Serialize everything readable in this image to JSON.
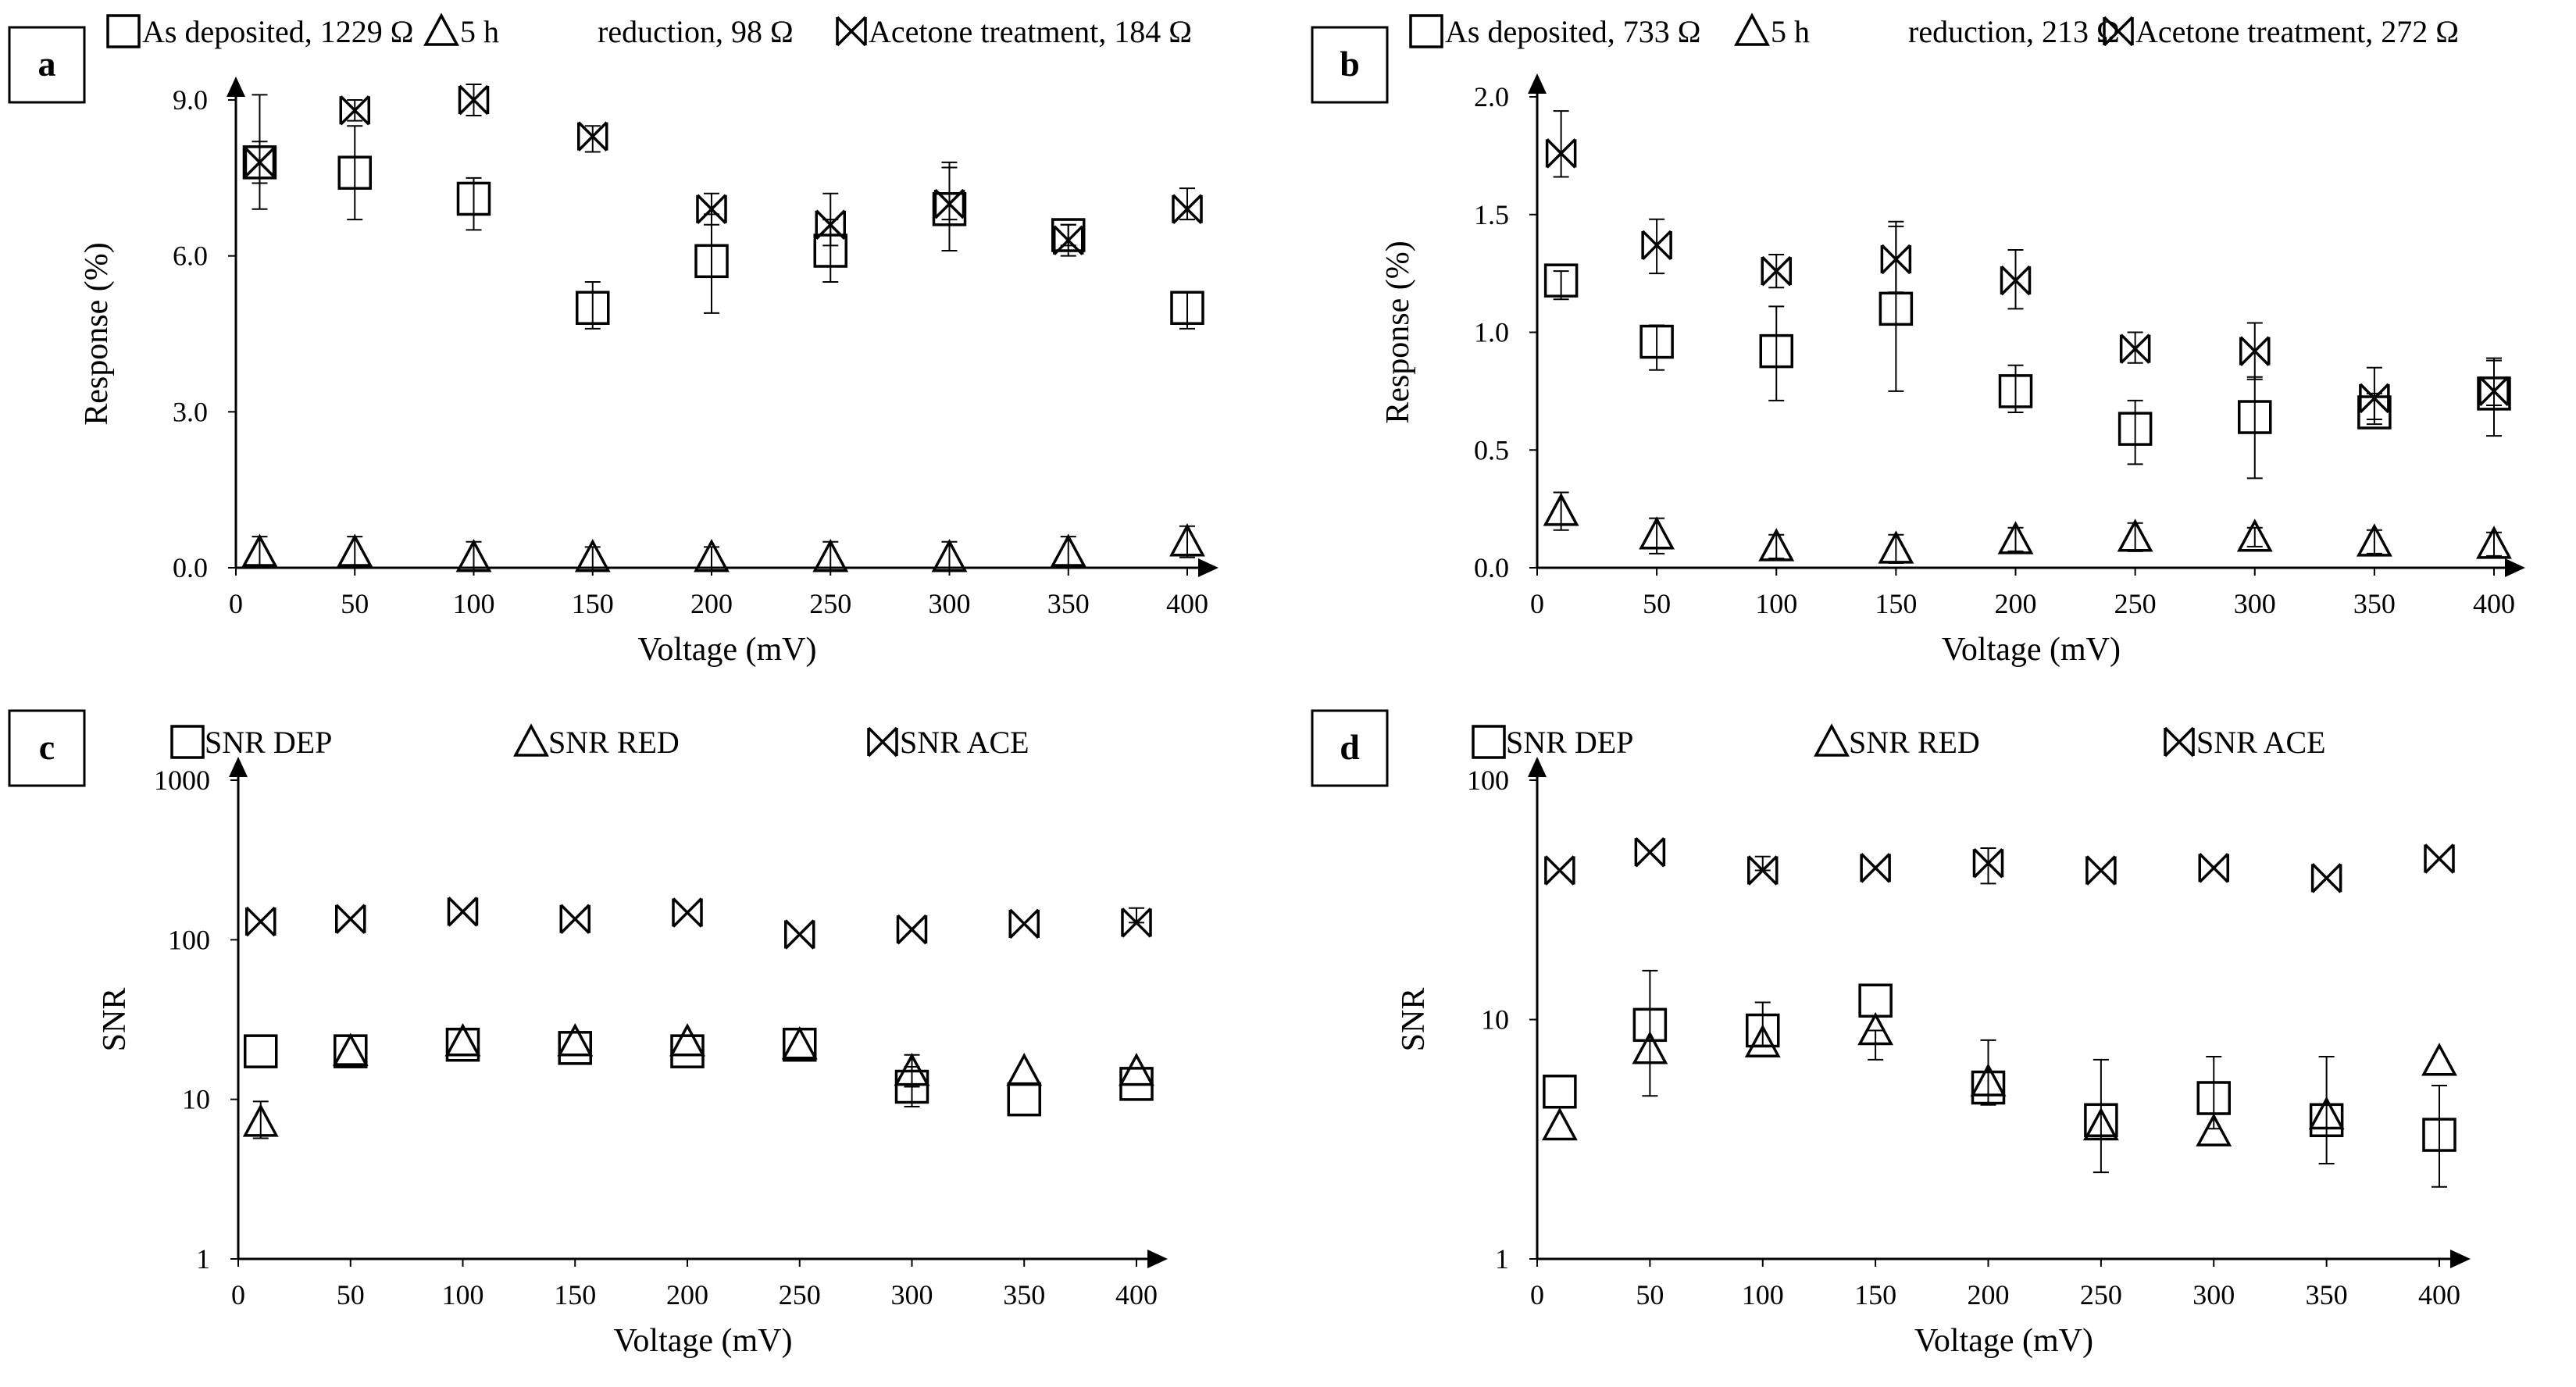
{
  "chart_data": [
    {
      "panel": "a",
      "type": "scatter",
      "title": "",
      "xlabel": "Voltage (mV)",
      "ylabel": "Response (%)",
      "scale": "linear",
      "xlim": [
        0,
        400
      ],
      "ylim": [
        0,
        9
      ],
      "xticks": [
        "0",
        "50",
        "100",
        "150",
        "200",
        "250",
        "300",
        "350",
        "400"
      ],
      "yticks": [
        "0.0",
        "3.0",
        "6.0",
        "9.0"
      ],
      "x": [
        10,
        50,
        100,
        150,
        200,
        250,
        300,
        350,
        400
      ],
      "legend": [
        "As deposited, 1229 Ω",
        "5 h",
        "reduction, 98 Ω",
        "Acetone treatment, 184 Ω"
      ],
      "series": [
        {
          "name": "As deposited, 1229 Ω",
          "marker": "square",
          "values": [
            7.8,
            7.6,
            7.1,
            5.0,
            5.9,
            6.1,
            6.9,
            6.4,
            5.0
          ],
          "err_lo": [
            0.4,
            0.9,
            0.6,
            0.4,
            1.0,
            0.6,
            0.8,
            0.2,
            0.4
          ],
          "err_hi": [
            0.4,
            0.9,
            0.4,
            0.5,
            0.9,
            0.6,
            0.8,
            0.2,
            0.3
          ]
        },
        {
          "name": "5 h reduction, 98 Ω",
          "marker": "triangle",
          "values": [
            0.3,
            0.3,
            0.2,
            0.2,
            0.2,
            0.2,
            0.2,
            0.3,
            0.5
          ],
          "err_lo": [
            0.3,
            0.3,
            0.3,
            0.2,
            0.2,
            0.3,
            0.2,
            0.3,
            0.3
          ],
          "err_hi": [
            0.3,
            0.3,
            0.3,
            0.2,
            0.2,
            0.3,
            0.3,
            0.3,
            0.3
          ]
        },
        {
          "name": "Acetone treatment, 184 Ω",
          "marker": "bowtie",
          "values": [
            7.8,
            8.8,
            9.0,
            8.3,
            6.9,
            6.6,
            7.0,
            6.3,
            6.9
          ],
          "err_lo": [
            0.9,
            0.2,
            0.3,
            0.3,
            0.3,
            0.4,
            0.3,
            0.3,
            0.2
          ],
          "err_hi": [
            1.3,
            0.2,
            0.3,
            0.2,
            0.3,
            0.6,
            0.8,
            0.3,
            0.4
          ]
        }
      ]
    },
    {
      "panel": "b",
      "type": "scatter",
      "title": "",
      "xlabel": "Voltage (mV)",
      "ylabel": "Response (%)",
      "scale": "linear",
      "xlim": [
        0,
        400
      ],
      "ylim": [
        0,
        2
      ],
      "xticks": [
        "0",
        "50",
        "100",
        "150",
        "200",
        "250",
        "300",
        "350",
        "400"
      ],
      "yticks": [
        "0.0",
        "0.5",
        "1.0",
        "1.5",
        "2.0"
      ],
      "x": [
        10,
        50,
        100,
        150,
        200,
        250,
        300,
        350,
        400
      ],
      "legend": [
        "As deposited, 733 Ω",
        "5 h",
        "reduction, 213 Ω",
        "Acetone treatment, 272 Ω"
      ],
      "series": [
        {
          "name": "As deposited, 733 Ω",
          "marker": "square",
          "values": [
            1.22,
            0.96,
            0.92,
            1.1,
            0.75,
            0.59,
            0.64,
            0.66,
            0.74
          ],
          "err_lo": [
            0.08,
            0.12,
            0.21,
            0.35,
            0.09,
            0.15,
            0.26,
            0.05,
            0.18
          ],
          "err_hi": [
            0.04,
            0.07,
            0.19,
            0.35,
            0.11,
            0.12,
            0.17,
            0.08,
            0.14
          ]
        },
        {
          "name": "5 h reduction, 213 Ω",
          "marker": "triangle",
          "values": [
            0.24,
            0.14,
            0.09,
            0.08,
            0.12,
            0.13,
            0.13,
            0.11,
            0.1
          ],
          "err_lo": [
            0.08,
            0.08,
            0.05,
            0.06,
            0.05,
            0.06,
            0.04,
            0.05,
            0.05
          ],
          "err_hi": [
            0.08,
            0.07,
            0.05,
            0.06,
            0.05,
            0.06,
            0.04,
            0.05,
            0.05
          ]
        },
        {
          "name": "Acetone treatment, 272 Ω",
          "marker": "bowtie",
          "values": [
            1.76,
            1.37,
            1.26,
            1.31,
            1.22,
            0.93,
            0.92,
            0.72,
            0.75
          ],
          "err_lo": [
            0.1,
            0.12,
            0.07,
            0.14,
            0.12,
            0.06,
            0.12,
            0.09,
            0.06
          ],
          "err_hi": [
            0.18,
            0.11,
            0.07,
            0.16,
            0.13,
            0.07,
            0.12,
            0.13,
            0.14
          ]
        }
      ]
    },
    {
      "panel": "c",
      "type": "scatter",
      "title": "",
      "xlabel": "Voltage (mV)",
      "ylabel": "SNR",
      "scale": "log",
      "xlim": [
        0,
        400
      ],
      "ylim": [
        1,
        1000
      ],
      "xticks": [
        "0",
        "50",
        "100",
        "150",
        "200",
        "250",
        "300",
        "350",
        "400"
      ],
      "yticks": [
        "1",
        "10",
        "100",
        "1000"
      ],
      "x": [
        10,
        50,
        100,
        150,
        200,
        250,
        300,
        350,
        400
      ],
      "legend": [
        "SNR DEP",
        "SNR RED",
        "SNR ACE"
      ],
      "series": [
        {
          "name": "SNR DEP",
          "marker": "square",
          "values": [
            20,
            20,
            22,
            21,
            20,
            22,
            12,
            10,
            12.5
          ],
          "err_lo": [
            0,
            0,
            0,
            0,
            0,
            0,
            3,
            0,
            0
          ],
          "err_hi": [
            0,
            0,
            0,
            0,
            0,
            0,
            4,
            0,
            0
          ]
        },
        {
          "name": "SNR RED",
          "marker": "triangle",
          "values": [
            7.2,
            20,
            23,
            23,
            23,
            22,
            15,
            15,
            15
          ],
          "err_lo": [
            1.5,
            0,
            0,
            0,
            0,
            0,
            3,
            0,
            0
          ],
          "err_hi": [
            2.5,
            0,
            0,
            0,
            0,
            0,
            4,
            0,
            0
          ]
        },
        {
          "name": "SNR ACE",
          "marker": "bowtie",
          "values": [
            130,
            135,
            150,
            135,
            148,
            108,
            116,
            126,
            128
          ],
          "err_lo": [
            0,
            0,
            0,
            0,
            0,
            0,
            0,
            0,
            0
          ],
          "err_hi": [
            0,
            0,
            0,
            0,
            0,
            0,
            0,
            0,
            30
          ]
        }
      ]
    },
    {
      "panel": "d",
      "type": "scatter",
      "title": "",
      "xlabel": "Voltage (mV)",
      "ylabel": "SNR",
      "scale": "log",
      "xlim": [
        0,
        400
      ],
      "ylim": [
        1,
        100
      ],
      "xticks": [
        "0",
        "50",
        "100",
        "150",
        "200",
        "250",
        "300",
        "350",
        "400"
      ],
      "yticks": [
        "1",
        "10",
        "100"
      ],
      "x": [
        10,
        50,
        100,
        150,
        200,
        250,
        300,
        350,
        400
      ],
      "legend": [
        "SNR DEP",
        "SNR RED",
        "SNR ACE"
      ],
      "series": [
        {
          "name": "SNR DEP",
          "marker": "square",
          "values": [
            5.0,
            9.5,
            9.0,
            12,
            5.2,
            3.8,
            4.7,
            3.8,
            3.3
          ],
          "err_lo": [
            0,
            4.7,
            1.2,
            0,
            0.8,
            1.5,
            1.2,
            1.3,
            1.3
          ],
          "err_hi": [
            0,
            6.5,
            2.8,
            0,
            3.0,
            3.0,
            2.3,
            3.2,
            2.0
          ]
        },
        {
          "name": "SNR RED",
          "marker": "triangle",
          "values": [
            3.6,
            7.5,
            8.0,
            9.0,
            5.5,
            3.6,
            3.4,
            4.0,
            6.7
          ],
          "err_lo": [
            0,
            0,
            0,
            2.2,
            0,
            0,
            0,
            0,
            0
          ],
          "err_hi": [
            0,
            0,
            0,
            0,
            0,
            0,
            0,
            0,
            0
          ]
        },
        {
          "name": "SNR ACE",
          "marker": "bowtie",
          "values": [
            42,
            50,
            42,
            43,
            45,
            42,
            43,
            39,
            47
          ],
          "err_lo": [
            0,
            0,
            0,
            0,
            8,
            0,
            0,
            0,
            0
          ],
          "err_hi": [
            0,
            0,
            6,
            0,
            7,
            0,
            0,
            0,
            0
          ]
        }
      ]
    }
  ]
}
